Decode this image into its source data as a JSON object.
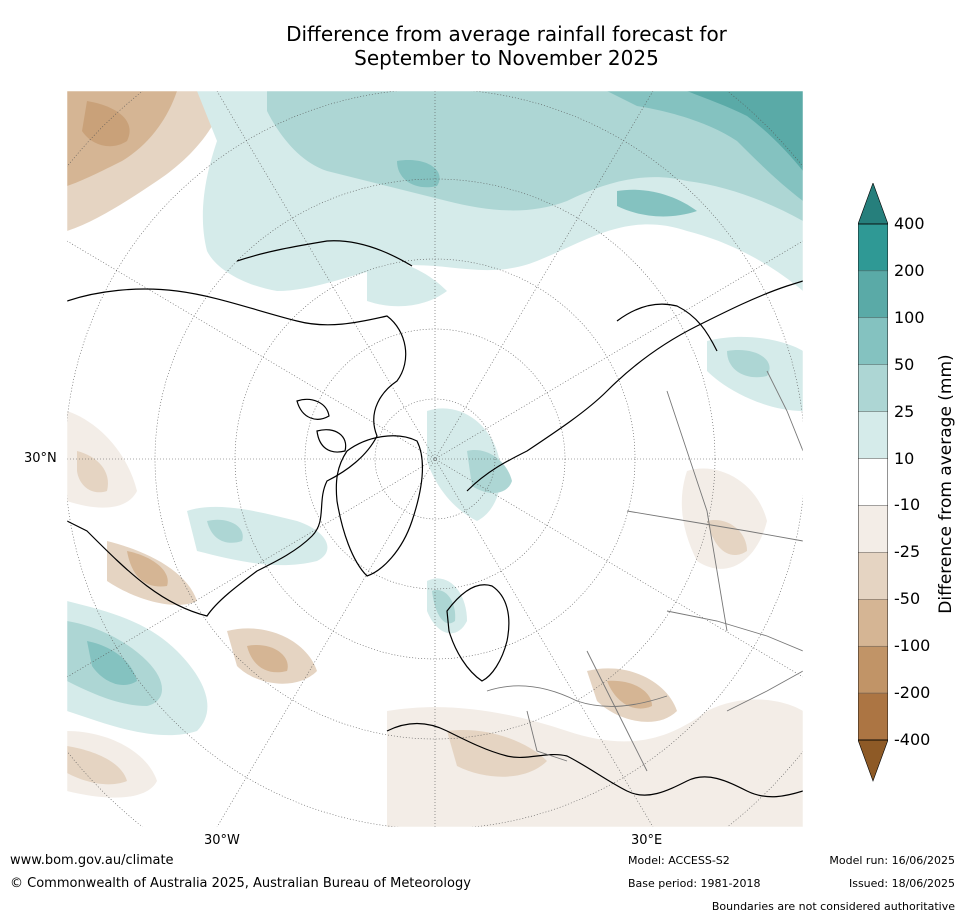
{
  "title": {
    "line1": "Difference from average rainfall forecast for",
    "line2": "September to November 2025"
  },
  "map": {
    "projection": "north-polar-stereographic",
    "lat_labels": [
      "30°N"
    ],
    "lon_labels": [
      "30°W",
      "30°E"
    ]
  },
  "colorbar": {
    "label": "Difference from average (mm)",
    "ticks": [
      "400",
      "200",
      "100",
      "50",
      "25",
      "10",
      "-10",
      "-25",
      "-50",
      "-100",
      "-200",
      "-400"
    ],
    "colors": [
      "#2f9995",
      "#5aaaa7",
      "#84c2c0",
      "#add6d4",
      "#d5ebea",
      "#ffffff",
      "#f3ede7",
      "#e5d4c2",
      "#d5b594",
      "#c19467",
      "#ac7543"
    ],
    "over_color": "#267f7c",
    "under_color": "#8e5a26"
  },
  "footer": {
    "website": "www.bom.gov.au/climate",
    "copyright": "© Commonwealth of Australia 2025, Australian Bureau of Meteorology",
    "model": "Model: ACCESS-S2",
    "base_period": "Base period: 1981-2018",
    "model_run": "Model run: 16/06/2025",
    "issued": "Issued: 18/06/2025",
    "disclaimer": "Boundaries are not considered authoritative"
  }
}
